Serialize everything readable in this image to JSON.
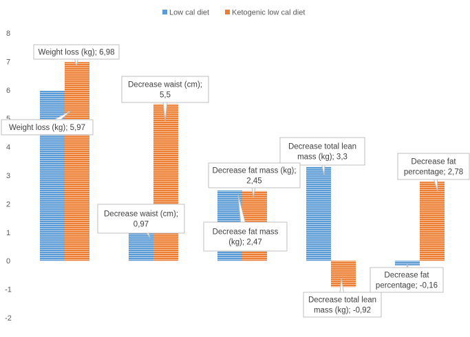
{
  "chart_data": {
    "type": "bar",
    "title": "",
    "xlabel": "",
    "ylabel": "",
    "ylim": [
      -2,
      8
    ],
    "yticks": [
      -2,
      -1,
      0,
      1,
      2,
      3,
      4,
      5,
      6,
      7,
      8
    ],
    "grid": false,
    "legend_position": "top",
    "categories": [
      "Weight loss (kg)",
      "Decrease waist (cm)",
      "Decrease fat mass (kg)",
      "Decrease total lean mass (kg)",
      "Decrease fat percentage"
    ],
    "series": [
      {
        "name": "Low cal diet",
        "color": "#5B9BD5",
        "values": [
          5.97,
          0.97,
          2.47,
          3.3,
          -0.16
        ],
        "labels": [
          [
            "Weight loss (kg); 5,97"
          ],
          [
            "Decrease waist (cm);",
            "0,97"
          ],
          [
            "Decrease fat mass",
            "(kg); 2,47"
          ],
          [
            "Decrease total lean",
            "mass (kg); 3,3"
          ],
          [
            "Decrease fat",
            "percentage; -0,16"
          ]
        ]
      },
      {
        "name": "Ketogenic low cal diet",
        "color": "#ED7D31",
        "values": [
          6.98,
          5.5,
          2.45,
          -0.92,
          2.78
        ],
        "labels": [
          [
            "Weight loss (kg); 6,98"
          ],
          [
            "Decrease waist (cm);",
            "5,5"
          ],
          [
            "Decrease fat mass (kg);",
            "2,45"
          ],
          [
            "Decrease total lean",
            "mass (kg); -0,92"
          ],
          [
            "Decrease fat",
            "percentage; 2,78"
          ]
        ]
      }
    ]
  }
}
